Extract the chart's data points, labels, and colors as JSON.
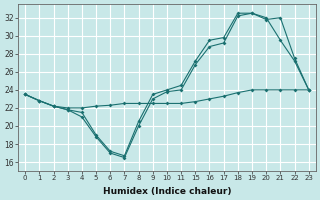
{
  "background_color": "#c8e8e8",
  "grid_color": "#ffffff",
  "line_color": "#1a7070",
  "xlabel": "Humidex (Indice chaleur)",
  "ylim": [
    15,
    33.5
  ],
  "yticks": [
    16,
    18,
    20,
    22,
    24,
    26,
    28,
    30,
    32
  ],
  "xtick_labels": [
    "0",
    "1",
    "2",
    "3",
    "4",
    "5",
    "6",
    "7",
    "8",
    "9",
    "10",
    "11",
    "15",
    "16",
    "17",
    "18",
    "19",
    "20",
    "21",
    "22",
    "23"
  ],
  "curve1_y": [
    23.5,
    22.8,
    22.2,
    22.0,
    22.0,
    22.2,
    22.3,
    22.5,
    22.5,
    22.5,
    22.5,
    22.5,
    22.7,
    23.0,
    23.3,
    23.7,
    24.0,
    24.0,
    24.0,
    24.0,
    24.0
  ],
  "curve2_y": [
    23.5,
    22.8,
    22.2,
    21.8,
    21.5,
    19.0,
    17.2,
    16.7,
    20.5,
    23.5,
    24.0,
    24.5,
    27.2,
    29.5,
    29.8,
    32.5,
    32.5,
    31.8,
    32.0,
    27.5,
    24.0
  ],
  "curve3_y": [
    23.5,
    22.8,
    22.2,
    21.8,
    21.0,
    18.8,
    17.0,
    16.5,
    20.0,
    23.0,
    23.8,
    24.0,
    26.8,
    28.8,
    29.2,
    32.2,
    32.5,
    32.0,
    29.5,
    27.2,
    24.0
  ]
}
